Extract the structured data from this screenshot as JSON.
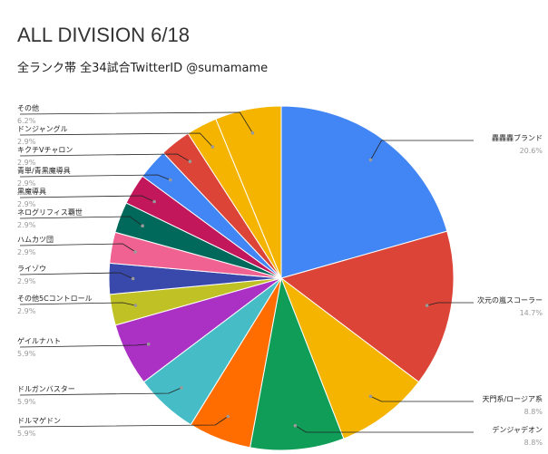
{
  "chart_data": {
    "type": "pie",
    "title": "ALL DIVISION 6/18",
    "subtitle": "全ランク帯 全34試合TwitterID @sumamame",
    "slices": [
      {
        "label": "轟轟轟ブランド",
        "pct_label": "20.6%",
        "value": 20.6,
        "color": "#4285f4"
      },
      {
        "label": "次元の嵐スコーラー",
        "pct_label": "14.7%",
        "value": 14.7,
        "color": "#db4437"
      },
      {
        "label": "天門系/ロージア系",
        "pct_label": "8.8%",
        "value": 8.8,
        "color": "#f4b400"
      },
      {
        "label": "デンジャデオン",
        "pct_label": "8.8%",
        "value": 8.8,
        "color": "#0f9d58"
      },
      {
        "label": "ドルマゲドン",
        "pct_label": "5.9%",
        "value": 5.9,
        "color": "#ff6d01"
      },
      {
        "label": "ドルガンバスター",
        "pct_label": "5.9%",
        "value": 5.9,
        "color": "#46bdc6"
      },
      {
        "label": "ゲイルナハト",
        "pct_label": "5.9%",
        "value": 5.9,
        "color": "#ab30c4"
      },
      {
        "label": "その他5Cコントロール",
        "pct_label": "2.9%",
        "value": 2.9,
        "color": "#c0c125"
      },
      {
        "label": "ライゾウ",
        "pct_label": "2.9%",
        "value": 2.9,
        "color": "#3949ab"
      },
      {
        "label": "ハムカツ団",
        "pct_label": "2.9%",
        "value": 2.9,
        "color": "#f06292"
      },
      {
        "label": "ネログリフィス覇世",
        "pct_label": "2.9%",
        "value": 2.9,
        "color": "#00695c"
      },
      {
        "label": "黒魔導具",
        "pct_label": "2.9%",
        "value": 2.9,
        "color": "#c2185b"
      },
      {
        "label": "青単/青黒魔導具",
        "pct_label": "2.9%",
        "value": 2.9,
        "color": "#4285f4"
      },
      {
        "label": "キクチVチャロン",
        "pct_label": "2.9%",
        "value": 2.9,
        "color": "#db4437"
      },
      {
        "label": "ドンジャングル",
        "pct_label": "2.9%",
        "value": 2.9,
        "color": "#f4b400"
      },
      {
        "label": "その他",
        "pct_label": "6.2%",
        "value": 6.2,
        "color": "#f4b400"
      }
    ]
  }
}
